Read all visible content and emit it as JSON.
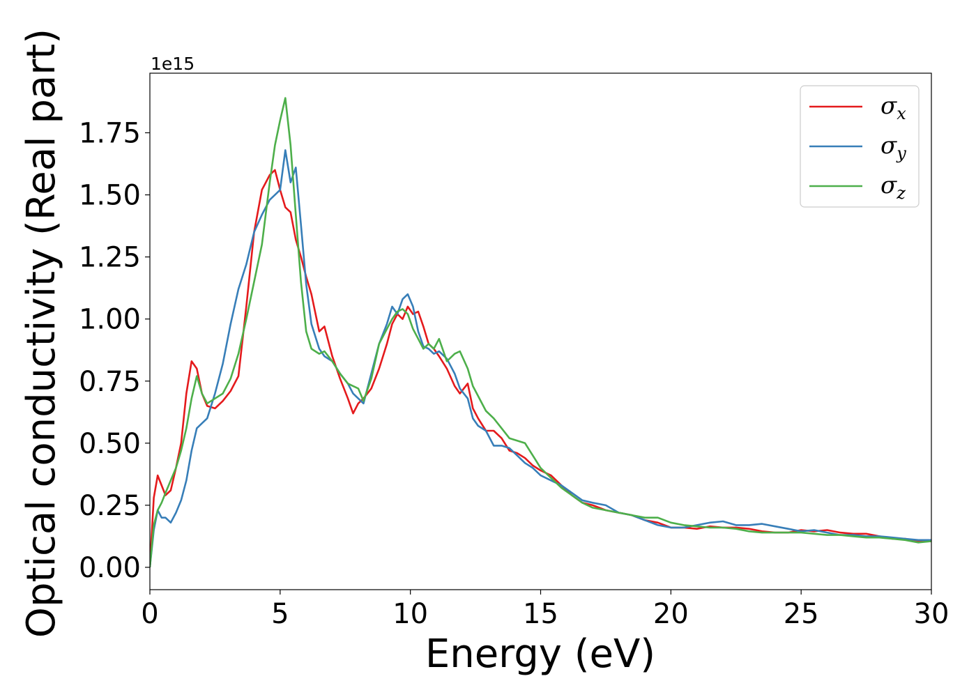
{
  "chart_data": {
    "type": "line",
    "xlabel": "Energy (eV)",
    "ylabel": "Optical conductivity (Real part)",
    "y_offset_label": "1e15",
    "xlim": [
      0,
      30
    ],
    "ylim": [
      -0.09,
      1.99
    ],
    "x_ticks": [
      0,
      5,
      10,
      15,
      20,
      25,
      30
    ],
    "x_tick_labels": [
      "0",
      "5",
      "10",
      "15",
      "20",
      "25",
      "30"
    ],
    "y_ticks": [
      0,
      0.25,
      0.5,
      0.75,
      1.0,
      1.25,
      1.5,
      1.75
    ],
    "y_tick_labels": [
      "0.00",
      "0.25",
      "0.50",
      "0.75",
      "1.00",
      "1.25",
      "1.50",
      "1.75"
    ],
    "grid": false,
    "legend_position": "top-right",
    "series": [
      {
        "name": "σx",
        "base": "σ",
        "sub": "x",
        "color": "#e41a1c",
        "x": [
          0,
          0.15,
          0.3,
          0.45,
          0.6,
          0.8,
          1.0,
          1.2,
          1.4,
          1.6,
          1.8,
          2.0,
          2.2,
          2.5,
          2.8,
          3.1,
          3.4,
          3.7,
          4.0,
          4.3,
          4.6,
          4.8,
          5.0,
          5.2,
          5.4,
          5.6,
          5.8,
          6.0,
          6.2,
          6.5,
          6.7,
          7.0,
          7.3,
          7.6,
          7.8,
          8.0,
          8.2,
          8.5,
          8.8,
          9.1,
          9.3,
          9.5,
          9.7,
          9.9,
          10.1,
          10.3,
          10.5,
          10.7,
          10.9,
          11.1,
          11.4,
          11.7,
          11.9,
          12.2,
          12.4,
          12.6,
          12.9,
          13.2,
          13.5,
          13.8,
          14.1,
          14.4,
          14.7,
          15.0,
          15.4,
          15.8,
          16.2,
          16.6,
          17.0,
          17.5,
          18.0,
          18.5,
          19.0,
          19.5,
          20.0,
          20.5,
          21.0,
          21.5,
          22.0,
          22.5,
          23.0,
          23.5,
          24.0,
          24.5,
          25.0,
          25.5,
          26.0,
          26.5,
          27.0,
          27.5,
          28.0,
          28.5,
          29.0,
          29.5,
          30.0
        ],
        "y": [
          0.0,
          0.28,
          0.37,
          0.33,
          0.29,
          0.31,
          0.4,
          0.5,
          0.7,
          0.83,
          0.8,
          0.7,
          0.65,
          0.64,
          0.67,
          0.71,
          0.77,
          1.05,
          1.35,
          1.52,
          1.58,
          1.6,
          1.52,
          1.45,
          1.43,
          1.32,
          1.25,
          1.17,
          1.1,
          0.95,
          0.97,
          0.85,
          0.76,
          0.68,
          0.62,
          0.66,
          0.68,
          0.72,
          0.8,
          0.9,
          0.98,
          1.02,
          1.0,
          1.05,
          1.02,
          1.03,
          0.97,
          0.9,
          0.88,
          0.85,
          0.8,
          0.73,
          0.7,
          0.74,
          0.64,
          0.6,
          0.55,
          0.55,
          0.52,
          0.47,
          0.46,
          0.44,
          0.41,
          0.39,
          0.37,
          0.33,
          0.29,
          0.26,
          0.25,
          0.23,
          0.22,
          0.21,
          0.19,
          0.18,
          0.16,
          0.16,
          0.155,
          0.165,
          0.16,
          0.16,
          0.155,
          0.145,
          0.14,
          0.14,
          0.15,
          0.145,
          0.15,
          0.14,
          0.135,
          0.135,
          0.125,
          0.115,
          0.115,
          0.105,
          0.105
        ]
      },
      {
        "name": "σy",
        "base": "σ",
        "sub": "y",
        "color": "#377eb8",
        "x": [
          0,
          0.15,
          0.3,
          0.45,
          0.6,
          0.8,
          1.0,
          1.2,
          1.4,
          1.6,
          1.8,
          2.0,
          2.2,
          2.5,
          2.8,
          3.1,
          3.4,
          3.7,
          4.0,
          4.3,
          4.6,
          4.8,
          5.0,
          5.2,
          5.4,
          5.6,
          5.8,
          6.0,
          6.2,
          6.5,
          6.7,
          7.0,
          7.3,
          7.6,
          7.8,
          8.0,
          8.2,
          8.5,
          8.8,
          9.1,
          9.3,
          9.5,
          9.7,
          9.9,
          10.1,
          10.3,
          10.5,
          10.7,
          10.9,
          11.1,
          11.4,
          11.7,
          11.9,
          12.2,
          12.4,
          12.6,
          12.9,
          13.2,
          13.5,
          13.8,
          14.1,
          14.4,
          14.7,
          15.0,
          15.4,
          15.8,
          16.2,
          16.6,
          17.0,
          17.5,
          18.0,
          18.5,
          19.0,
          19.5,
          20.0,
          20.5,
          21.0,
          21.5,
          22.0,
          22.5,
          23.0,
          23.5,
          24.0,
          24.5,
          25.0,
          25.5,
          26.0,
          26.5,
          27.0,
          27.5,
          28.0,
          28.5,
          29.0,
          29.5,
          30.0
        ],
        "y": [
          0.0,
          0.15,
          0.23,
          0.2,
          0.2,
          0.18,
          0.22,
          0.27,
          0.35,
          0.47,
          0.56,
          0.58,
          0.6,
          0.7,
          0.82,
          0.98,
          1.12,
          1.22,
          1.35,
          1.42,
          1.48,
          1.5,
          1.52,
          1.68,
          1.55,
          1.61,
          1.38,
          1.14,
          0.98,
          0.88,
          0.85,
          0.83,
          0.78,
          0.74,
          0.7,
          0.68,
          0.66,
          0.78,
          0.9,
          0.98,
          1.05,
          1.02,
          1.08,
          1.1,
          1.05,
          0.95,
          0.89,
          0.88,
          0.86,
          0.87,
          0.84,
          0.78,
          0.72,
          0.68,
          0.6,
          0.57,
          0.55,
          0.49,
          0.49,
          0.48,
          0.45,
          0.42,
          0.4,
          0.37,
          0.35,
          0.33,
          0.3,
          0.27,
          0.26,
          0.25,
          0.22,
          0.21,
          0.19,
          0.17,
          0.16,
          0.16,
          0.17,
          0.18,
          0.185,
          0.17,
          0.17,
          0.175,
          0.165,
          0.155,
          0.145,
          0.15,
          0.14,
          0.13,
          0.13,
          0.125,
          0.125,
          0.12,
          0.115,
          0.11,
          0.11
        ]
      },
      {
        "name": "σz",
        "base": "σ",
        "sub": "z",
        "color": "#4daf4a",
        "x": [
          0,
          0.15,
          0.3,
          0.45,
          0.6,
          0.8,
          1.0,
          1.2,
          1.4,
          1.6,
          1.8,
          2.0,
          2.2,
          2.5,
          2.8,
          3.1,
          3.4,
          3.7,
          4.0,
          4.3,
          4.6,
          4.8,
          5.0,
          5.2,
          5.4,
          5.6,
          5.8,
          6.0,
          6.2,
          6.5,
          6.7,
          7.0,
          7.3,
          7.6,
          7.8,
          8.0,
          8.2,
          8.5,
          8.8,
          9.1,
          9.3,
          9.5,
          9.7,
          9.9,
          10.1,
          10.3,
          10.5,
          10.7,
          10.9,
          11.1,
          11.4,
          11.7,
          11.9,
          12.2,
          12.4,
          12.6,
          12.9,
          13.2,
          13.5,
          13.8,
          14.1,
          14.4,
          14.7,
          15.0,
          15.4,
          15.8,
          16.2,
          16.6,
          17.0,
          17.5,
          18.0,
          18.5,
          19.0,
          19.5,
          20.0,
          20.5,
          21.0,
          21.5,
          22.0,
          22.5,
          23.0,
          23.5,
          24.0,
          24.5,
          25.0,
          25.5,
          26.0,
          26.5,
          27.0,
          27.5,
          28.0,
          28.5,
          29.0,
          29.5,
          30.0
        ],
        "y": [
          0.0,
          0.17,
          0.23,
          0.26,
          0.3,
          0.35,
          0.4,
          0.47,
          0.56,
          0.68,
          0.77,
          0.7,
          0.66,
          0.68,
          0.7,
          0.76,
          0.86,
          1.0,
          1.15,
          1.3,
          1.55,
          1.7,
          1.8,
          1.89,
          1.7,
          1.42,
          1.15,
          0.95,
          0.88,
          0.86,
          0.87,
          0.83,
          0.78,
          0.74,
          0.73,
          0.72,
          0.67,
          0.76,
          0.9,
          0.96,
          1.0,
          1.03,
          1.04,
          1.02,
          0.96,
          0.92,
          0.88,
          0.9,
          0.88,
          0.92,
          0.83,
          0.86,
          0.87,
          0.8,
          0.73,
          0.69,
          0.63,
          0.6,
          0.56,
          0.52,
          0.51,
          0.5,
          0.45,
          0.4,
          0.36,
          0.32,
          0.29,
          0.26,
          0.24,
          0.23,
          0.22,
          0.21,
          0.2,
          0.2,
          0.18,
          0.17,
          0.165,
          0.16,
          0.16,
          0.155,
          0.145,
          0.14,
          0.14,
          0.14,
          0.14,
          0.135,
          0.13,
          0.13,
          0.125,
          0.12,
          0.12,
          0.115,
          0.11,
          0.1,
          0.105
        ]
      }
    ]
  }
}
